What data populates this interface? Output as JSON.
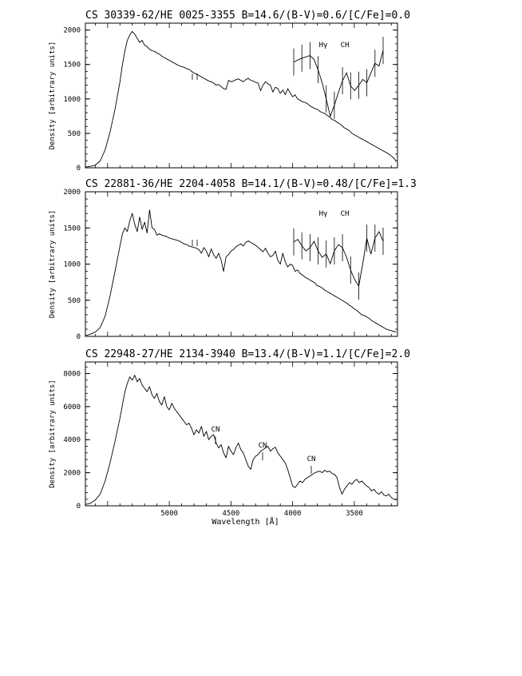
{
  "chart_data": [
    {
      "type": "line",
      "title": "CS 30339-62/HE 0025-3355  B=14.6/(B-V)=0.6/[C/Fe]=0.0",
      "ylabel": "Density [arbitrary units]",
      "xlabel": "",
      "ylim": [
        0,
        2100
      ],
      "yticks": [
        0,
        500,
        1000,
        1500,
        2000
      ],
      "xlim": [
        5680,
        3150
      ],
      "xticks": [],
      "grid": false,
      "series": [
        {
          "x": [
            5680,
            5640,
            5600,
            5560,
            5520,
            5480,
            5440,
            5400,
            5380,
            5360,
            5340,
            5320,
            5300,
            5280,
            5260,
            5240,
            5220,
            5200,
            5180,
            5160,
            5140,
            5120,
            5100,
            5080,
            5060,
            5040,
            5020,
            5000,
            4980,
            4960,
            4940,
            4920,
            4900,
            4880,
            4860,
            4840,
            4820,
            4800,
            4780,
            4760,
            4740,
            4720,
            4700,
            4680,
            4660,
            4640,
            4620,
            4600,
            4580,
            4560,
            4540,
            4520,
            4500,
            4480,
            4460,
            4440,
            4420,
            4400,
            4380,
            4360,
            4340,
            4320,
            4300,
            4280,
            4260,
            4240,
            4220,
            4200,
            4180,
            4160,
            4140,
            4120,
            4100,
            4080,
            4060,
            4040,
            4020,
            4000,
            3980,
            3960,
            3940,
            3920,
            3900,
            3880,
            3860,
            3840,
            3820,
            3800,
            3780,
            3760,
            3740,
            3720,
            3700,
            3680,
            3660,
            3640,
            3620,
            3600,
            3580,
            3560,
            3540,
            3520,
            3500,
            3480,
            3460,
            3440,
            3420,
            3400,
            3380,
            3360,
            3340,
            3320,
            3300,
            3280,
            3260,
            3240,
            3220,
            3200,
            3180,
            3160
          ],
          "y": [
            10,
            20,
            40,
            100,
            260,
            520,
            850,
            1250,
            1500,
            1700,
            1850,
            1930,
            1980,
            1940,
            1880,
            1820,
            1850,
            1780,
            1760,
            1720,
            1700,
            1690,
            1670,
            1650,
            1620,
            1600,
            1580,
            1560,
            1540,
            1520,
            1500,
            1480,
            1470,
            1460,
            1440,
            1430,
            1400,
            1380,
            1360,
            1340,
            1320,
            1300,
            1280,
            1260,
            1250,
            1230,
            1200,
            1210,
            1180,
            1150,
            1140,
            1270,
            1250,
            1260,
            1280,
            1290,
            1270,
            1250,
            1280,
            1300,
            1270,
            1260,
            1240,
            1230,
            1120,
            1200,
            1250,
            1220,
            1200,
            1100,
            1170,
            1150,
            1080,
            1130,
            1060,
            1150,
            1090,
            1030,
            1060,
            1000,
            980,
            960,
            950,
            930,
            900,
            880,
            860,
            850,
            820,
            800,
            790,
            760,
            740,
            700,
            690,
            660,
            640,
            610,
            580,
            560,
            540,
            500,
            480,
            460,
            440,
            420,
            400,
            380,
            360,
            340,
            320,
            300,
            280,
            260,
            240,
            220,
            200,
            170,
            140,
            100
          ]
        }
      ],
      "annotations": [
        "Hγ",
        "CH"
      ],
      "inset": {
        "x": [
          0,
          1,
          2,
          3,
          4,
          5,
          6,
          7,
          8,
          9,
          10,
          11,
          12,
          13,
          14,
          15,
          16,
          17,
          18,
          19,
          20,
          21,
          22
        ],
        "y": [
          1620,
          1650,
          1680,
          1700,
          1720,
          1660,
          1500,
          1300,
          1050,
          780,
          950,
          1150,
          1330,
          1450,
          1250,
          1180,
          1260,
          1350,
          1300,
          1450,
          1600,
          1560,
          1800
        ]
      }
    },
    {
      "type": "line",
      "title": "CS 22881-36/HE 2204-4058 B=14.1/(B-V)=0.48/[C/Fe]=1.3",
      "ylabel": "Density [arbitrary units]",
      "xlabel": "",
      "ylim": [
        0,
        2000
      ],
      "yticks": [
        0,
        500,
        1000,
        1500,
        2000
      ],
      "xlim": [
        5680,
        3150
      ],
      "xticks": [],
      "grid": false,
      "series": [
        {
          "x": [
            5680,
            5640,
            5600,
            5560,
            5520,
            5480,
            5440,
            5400,
            5380,
            5360,
            5340,
            5320,
            5300,
            5280,
            5260,
            5240,
            5220,
            5200,
            5180,
            5160,
            5140,
            5120,
            5100,
            5080,
            5060,
            5040,
            5020,
            5000,
            4980,
            4960,
            4940,
            4920,
            4900,
            4880,
            4860,
            4840,
            4820,
            4800,
            4780,
            4760,
            4740,
            4720,
            4700,
            4680,
            4660,
            4640,
            4620,
            4600,
            4580,
            4560,
            4540,
            4520,
            4500,
            4480,
            4460,
            4440,
            4420,
            4400,
            4380,
            4360,
            4340,
            4320,
            4300,
            4280,
            4260,
            4240,
            4220,
            4200,
            4180,
            4160,
            4140,
            4120,
            4100,
            4080,
            4060,
            4040,
            4020,
            4000,
            3980,
            3960,
            3940,
            3920,
            3900,
            3880,
            3860,
            3840,
            3820,
            3800,
            3780,
            3760,
            3740,
            3720,
            3700,
            3680,
            3660,
            3640,
            3620,
            3600,
            3580,
            3560,
            3540,
            3520,
            3500,
            3480,
            3460,
            3440,
            3420,
            3400,
            3380,
            3360,
            3340,
            3320,
            3300,
            3280,
            3260,
            3240,
            3220,
            3200,
            3180,
            3160
          ],
          "y": [
            10,
            30,
            60,
            120,
            280,
            560,
            900,
            1250,
            1420,
            1500,
            1450,
            1600,
            1700,
            1550,
            1450,
            1650,
            1480,
            1580,
            1430,
            1750,
            1500,
            1480,
            1400,
            1420,
            1400,
            1390,
            1380,
            1360,
            1350,
            1340,
            1330,
            1320,
            1300,
            1280,
            1270,
            1250,
            1240,
            1230,
            1220,
            1200,
            1150,
            1230,
            1180,
            1100,
            1210,
            1130,
            1080,
            1150,
            1060,
            900,
            1100,
            1130,
            1180,
            1200,
            1240,
            1260,
            1280,
            1250,
            1300,
            1320,
            1300,
            1280,
            1260,
            1230,
            1200,
            1170,
            1220,
            1150,
            1100,
            1120,
            1180,
            1050,
            1000,
            1150,
            1030,
            960,
            1000,
            980,
            900,
            920,
            870,
            850,
            820,
            800,
            780,
            760,
            740,
            700,
            690,
            670,
            640,
            620,
            600,
            580,
            560,
            540,
            520,
            500,
            480,
            460,
            430,
            410,
            380,
            360,
            330,
            300,
            290,
            270,
            250,
            220,
            200,
            180,
            160,
            140,
            120,
            100,
            90,
            80,
            70,
            60
          ]
        }
      ],
      "annotations": [
        "Hγ",
        "CH"
      ],
      "inset": {
        "x": [
          0,
          1,
          2,
          3,
          4,
          5,
          6,
          7,
          8,
          9,
          10,
          11,
          12,
          13,
          14,
          15,
          16,
          17,
          18,
          19,
          20,
          21,
          22
        ],
        "y": [
          1440,
          1480,
          1380,
          1300,
          1350,
          1450,
          1300,
          1200,
          1250,
          1100,
          1300,
          1400,
          1350,
          1200,
          1000,
          850,
          750,
          1100,
          1500,
          1250,
          1500,
          1600,
          1450
        ]
      }
    },
    {
      "type": "line",
      "title": "CS 22948-27/HE 2134-3940  B=13.4/(B-V)=1.1/[C/Fe]=2.0",
      "ylabel": "Density [arbitrary units]",
      "xlabel": "Wavelength [Å]",
      "ylim": [
        0,
        8700
      ],
      "yticks": [
        0,
        2000,
        4000,
        6000,
        8000
      ],
      "xlim": [
        5680,
        3150
      ],
      "xticks": [
        5000,
        4500,
        4000,
        3500
      ],
      "grid": false,
      "series": [
        {
          "x": [
            5680,
            5640,
            5600,
            5560,
            5520,
            5480,
            5440,
            5400,
            5380,
            5360,
            5340,
            5320,
            5300,
            5280,
            5260,
            5240,
            5220,
            5200,
            5180,
            5160,
            5140,
            5120,
            5100,
            5080,
            5060,
            5040,
            5020,
            5000,
            4980,
            4960,
            4940,
            4920,
            4900,
            4880,
            4860,
            4840,
            4820,
            4800,
            4780,
            4760,
            4740,
            4720,
            4700,
            4680,
            4660,
            4640,
            4620,
            4600,
            4580,
            4560,
            4540,
            4520,
            4500,
            4480,
            4460,
            4440,
            4420,
            4400,
            4380,
            4360,
            4340,
            4320,
            4300,
            4280,
            4260,
            4240,
            4220,
            4200,
            4180,
            4160,
            4140,
            4120,
            4100,
            4080,
            4060,
            4040,
            4020,
            4000,
            3980,
            3960,
            3940,
            3920,
            3900,
            3880,
            3860,
            3840,
            3820,
            3800,
            3780,
            3760,
            3740,
            3720,
            3700,
            3680,
            3660,
            3640,
            3620,
            3600,
            3580,
            3560,
            3540,
            3520,
            3500,
            3480,
            3460,
            3440,
            3420,
            3400,
            3380,
            3360,
            3340,
            3320,
            3300,
            3280,
            3260,
            3240,
            3220,
            3200,
            3180,
            3160
          ],
          "y": [
            80,
            150,
            350,
            700,
            1500,
            2600,
            3900,
            5300,
            6100,
            6900,
            7400,
            7800,
            7600,
            7900,
            7500,
            7700,
            7300,
            7100,
            6900,
            7200,
            6700,
            6500,
            6800,
            6300,
            6100,
            6600,
            6000,
            5800,
            6200,
            5900,
            5700,
            5500,
            5300,
            5100,
            4900,
            5000,
            4700,
            4300,
            4600,
            4400,
            4800,
            4200,
            4500,
            4000,
            4200,
            4300,
            3800,
            3500,
            3700,
            3200,
            2900,
            3600,
            3300,
            3100,
            3500,
            3800,
            3400,
            3200,
            2800,
            2400,
            2200,
            2800,
            3000,
            3100,
            3300,
            3400,
            3500,
            3600,
            3300,
            3450,
            3550,
            3200,
            3000,
            2800,
            2600,
            2200,
            1700,
            1200,
            1100,
            1300,
            1500,
            1400,
            1600,
            1700,
            1800,
            1900,
            2000,
            2050,
            2100,
            2000,
            2150,
            2050,
            2100,
            1950,
            1900,
            1700,
            1100,
            700,
            1000,
            1200,
            1400,
            1300,
            1500,
            1600,
            1400,
            1500,
            1350,
            1200,
            1100,
            900,
            1000,
            800,
            700,
            850,
            650,
            600,
            700,
            500,
            400,
            350
          ]
        }
      ],
      "annotations": [
        "CN",
        "CN",
        "CN"
      ]
    }
  ]
}
